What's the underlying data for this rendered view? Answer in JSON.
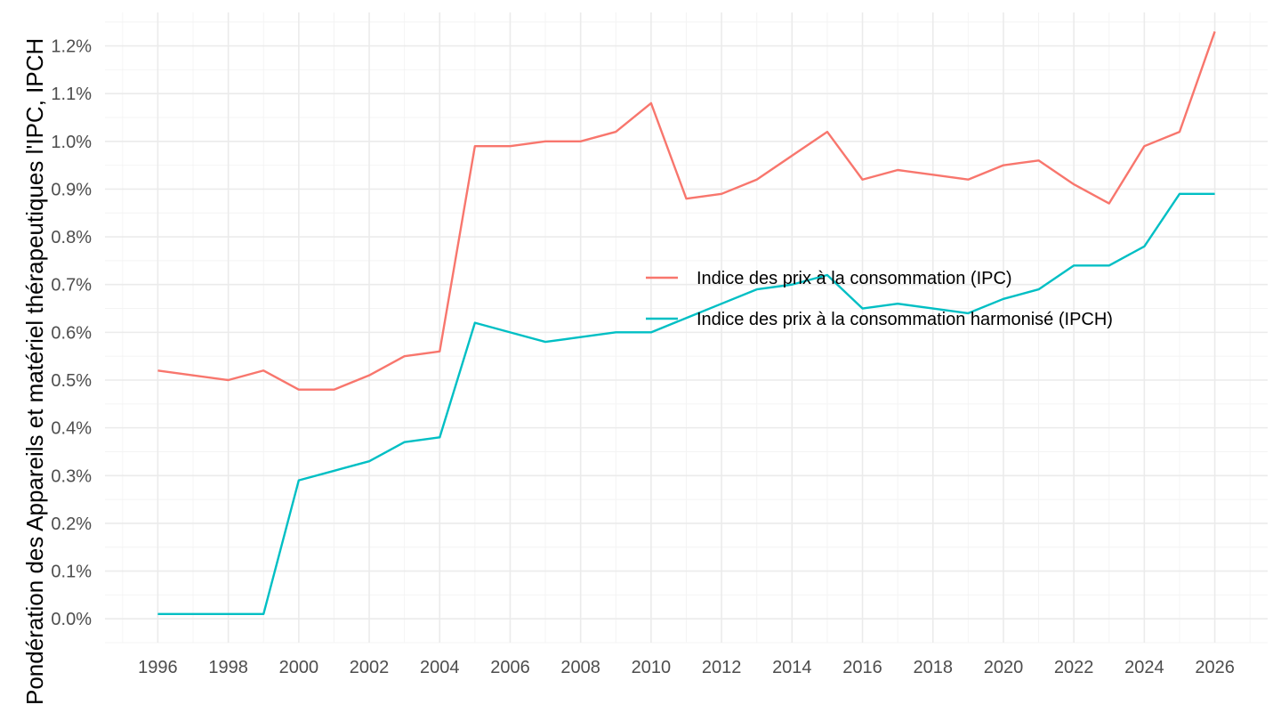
{
  "chart_data": {
    "type": "line",
    "title": "",
    "xlabel": "",
    "ylabel": "Pondération des Appareils et matériel thérapeutiques l'IPC, IPCH",
    "x": [
      1996,
      1997,
      1998,
      1999,
      2000,
      2001,
      2002,
      2003,
      2004,
      2005,
      2006,
      2007,
      2008,
      2009,
      2010,
      2011,
      2012,
      2013,
      2014,
      2015,
      2016,
      2017,
      2018,
      2019,
      2020,
      2021,
      2022,
      2023,
      2024,
      2025,
      2026
    ],
    "xlim": [
      1994.5,
      2027.5
    ],
    "ylim": [
      -0.0005,
      0.0127
    ],
    "x_ticks": [
      "1996",
      "1998",
      "2000",
      "2002",
      "2004",
      "2006",
      "2008",
      "2010",
      "2012",
      "2014",
      "2016",
      "2018",
      "2020",
      "2022",
      "2024",
      "2026"
    ],
    "y_ticks": [
      "0.0%",
      "0.1%",
      "0.2%",
      "0.3%",
      "0.4%",
      "0.5%",
      "0.6%",
      "0.7%",
      "0.8%",
      "0.9%",
      "1.0%",
      "1.1%",
      "1.2%"
    ],
    "grid": true,
    "legend_position": "right",
    "series": [
      {
        "name": "Indice des prix à la consommation (IPC)",
        "color": "#F8766D",
        "values": [
          0.0052,
          0.0051,
          0.005,
          0.0052,
          0.0048,
          0.0048,
          0.0051,
          0.0055,
          0.0056,
          0.0099,
          0.0099,
          0.01,
          0.01,
          0.0102,
          0.0108,
          0.0088,
          0.0089,
          0.0092,
          0.0097,
          0.0102,
          0.0092,
          0.0094,
          0.0093,
          0.0092,
          0.0095,
          0.0096,
          0.0091,
          0.0087,
          0.0099,
          0.0102,
          0.0123
        ]
      },
      {
        "name": "Indice des prix à la consommation harmonisé (IPCH)",
        "color": "#00BFC4",
        "values": [
          0.0001,
          0.0001,
          0.0001,
          0.0001,
          0.0029,
          0.0031,
          0.0033,
          0.0037,
          0.0038,
          0.0062,
          0.006,
          0.0058,
          0.0059,
          0.006,
          0.006,
          0.0063,
          0.0066,
          0.0069,
          0.007,
          0.0072,
          0.0065,
          0.0066,
          0.0065,
          0.0064,
          0.0067,
          0.0069,
          0.0074,
          0.0074,
          0.0078,
          0.0089,
          0.0089
        ]
      }
    ]
  }
}
